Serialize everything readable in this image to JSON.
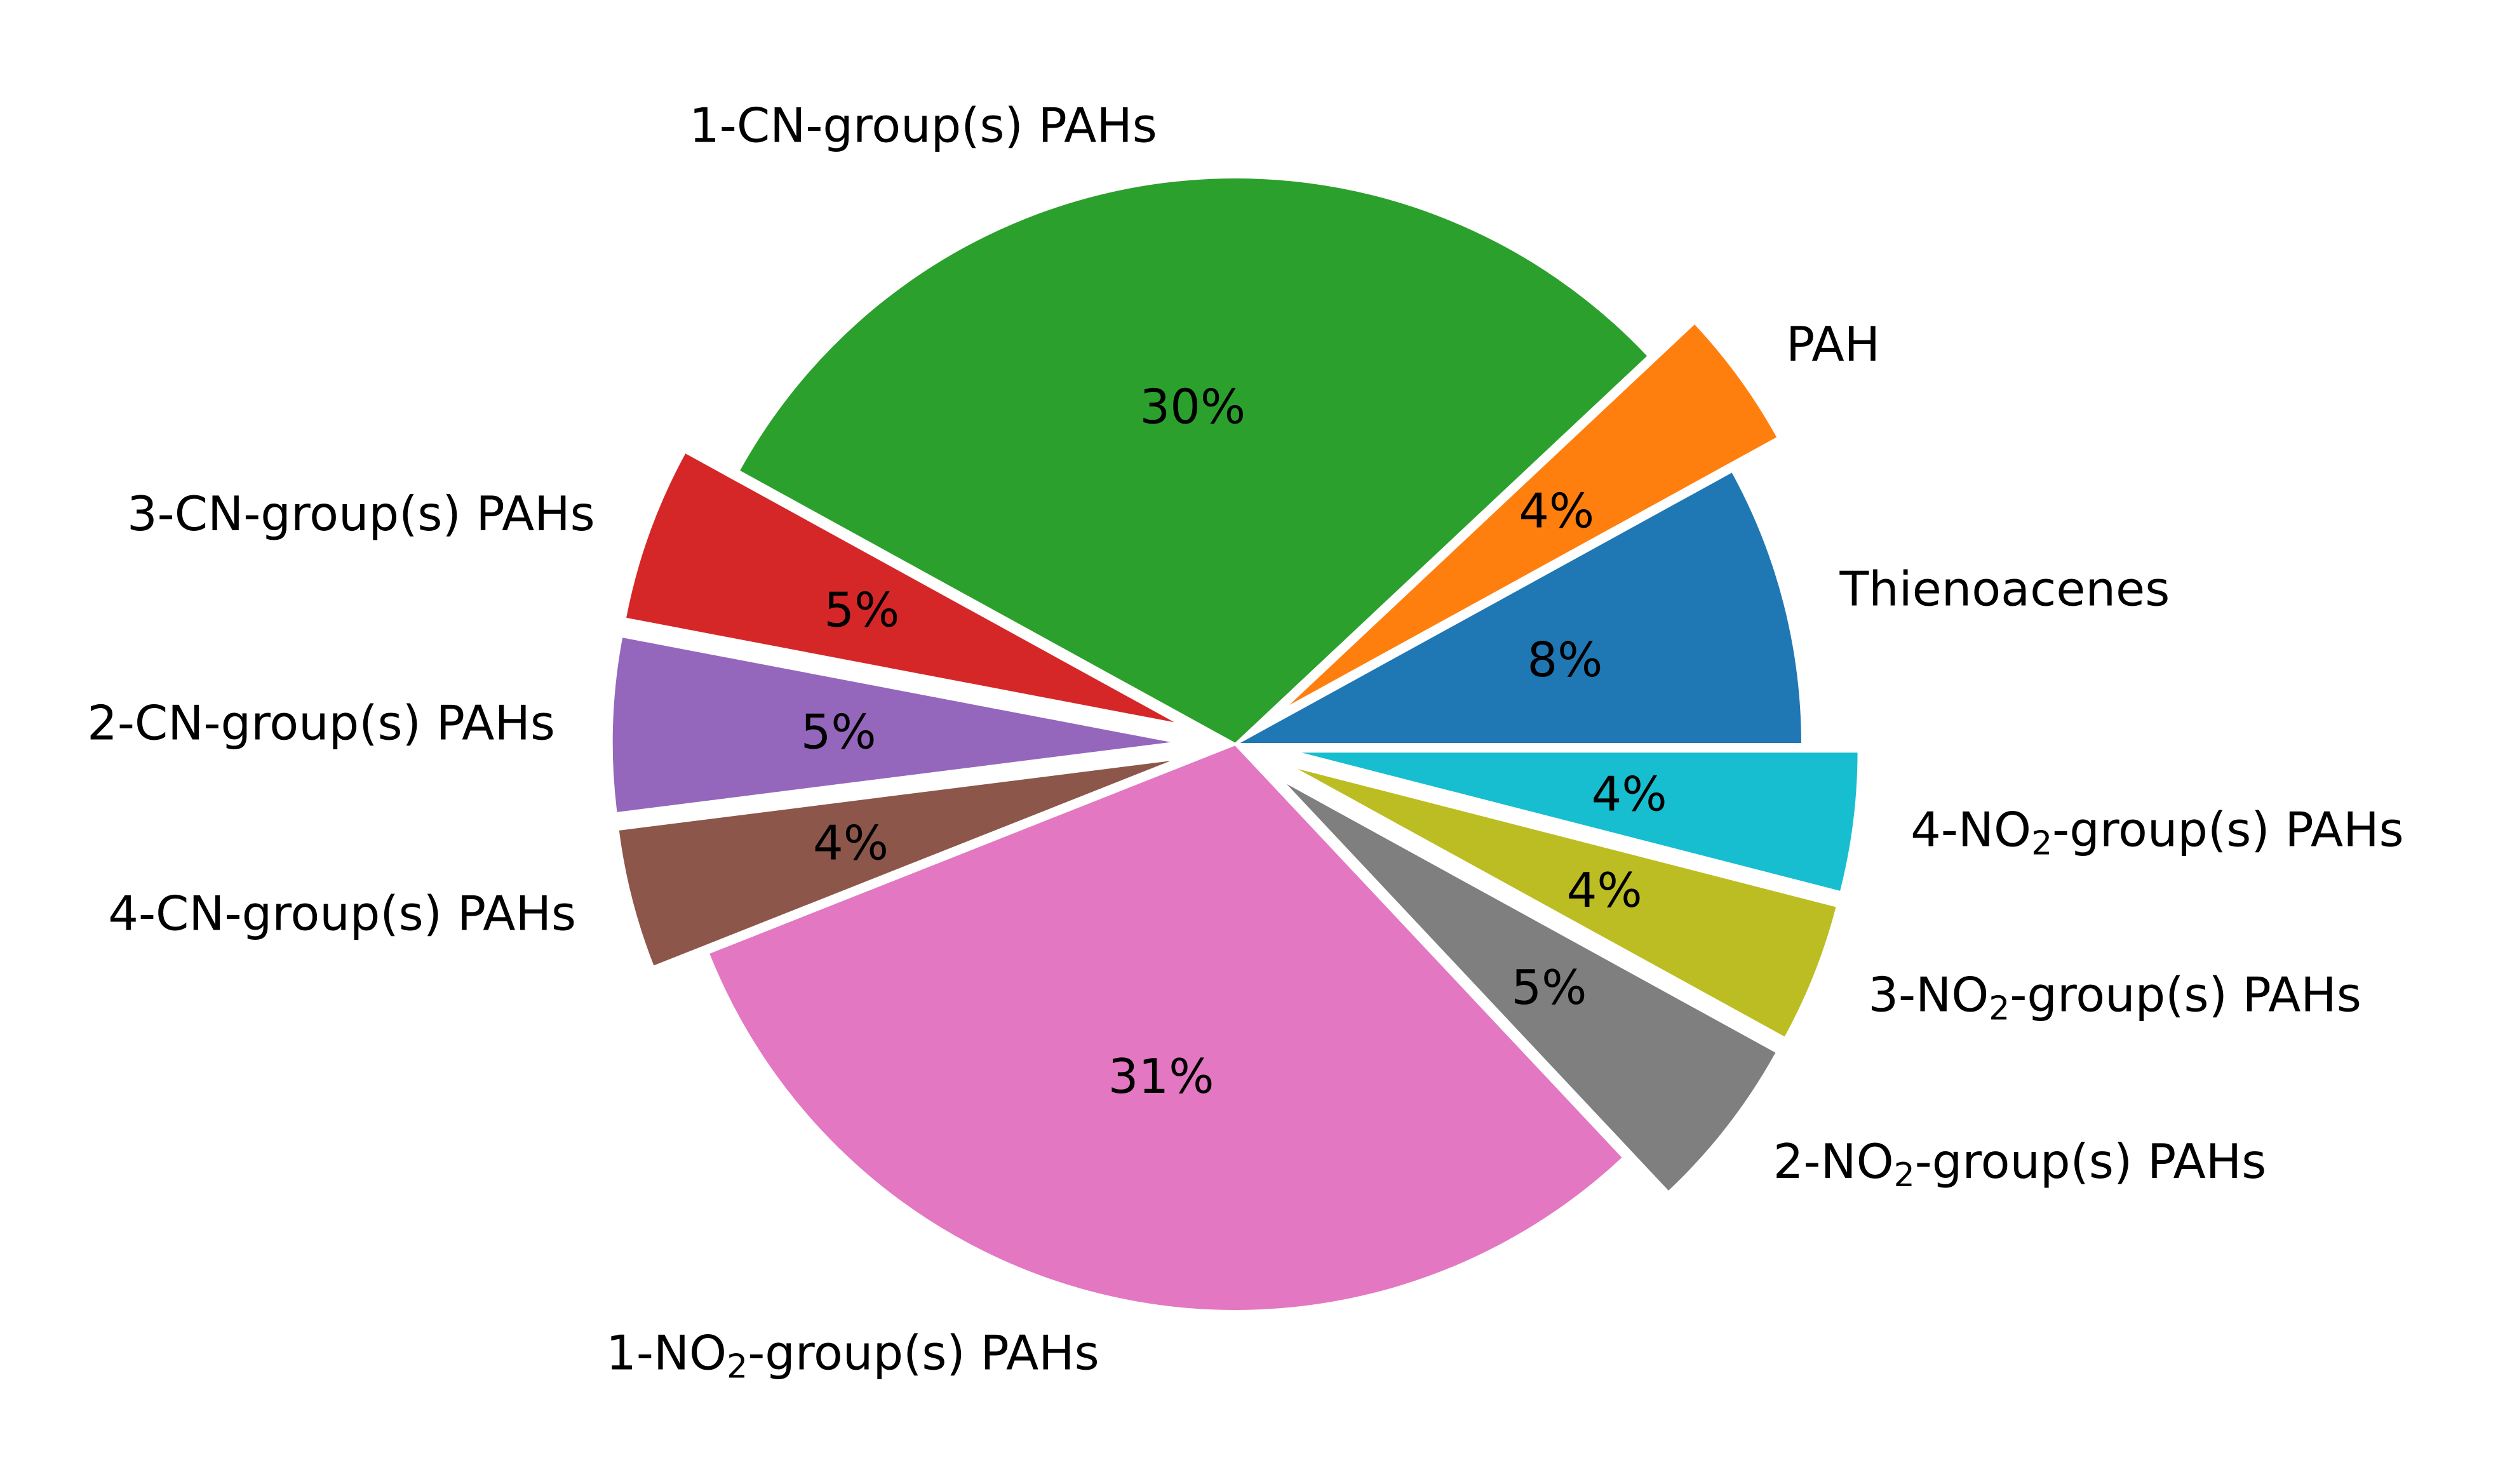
{
  "chart_data": {
    "type": "pie",
    "title": "",
    "start_angle_deg": 0,
    "direction": "counterclockwise",
    "slices": [
      {
        "label": "Thienoacenes",
        "label_parts": [
          {
            "text": "Thienoacenes"
          }
        ],
        "value": 8,
        "pct_label": "8%",
        "color": "#1f77b4",
        "exploded": false
      },
      {
        "label": "PAH",
        "label_parts": [
          {
            "text": "PAH"
          }
        ],
        "value": 4,
        "pct_label": "4%",
        "color": "#ff7f0e",
        "exploded": true
      },
      {
        "label": "1-CN-group(s) PAHs",
        "label_parts": [
          {
            "text": "1-CN-group(s) PAHs"
          }
        ],
        "value": 30,
        "pct_label": "30%",
        "color": "#2ca02c",
        "exploded": false
      },
      {
        "label": "3-CN-group(s) PAHs",
        "label_parts": [
          {
            "text": "3-CN-group(s) PAHs"
          }
        ],
        "value": 5,
        "pct_label": "5%",
        "color": "#d62728",
        "exploded": true
      },
      {
        "label": "2-CN-group(s) PAHs",
        "label_parts": [
          {
            "text": "2-CN-group(s) PAHs"
          }
        ],
        "value": 5,
        "pct_label": "5%",
        "color": "#9467bd",
        "exploded": true
      },
      {
        "label": "4-CN-group(s) PAHs",
        "label_parts": [
          {
            "text": "4-CN-group(s) PAHs"
          }
        ],
        "value": 4,
        "pct_label": "4%",
        "color": "#8c564b",
        "exploded": true
      },
      {
        "label": "1-NO2-group(s) PAHs",
        "label_parts": [
          {
            "text": "1-NO"
          },
          {
            "text": "2",
            "sub": true
          },
          {
            "text": "-group(s) PAHs"
          }
        ],
        "value": 31,
        "pct_label": "31%",
        "color": "#e377c2",
        "exploded": false
      },
      {
        "label": "2-NO2-group(s) PAHs",
        "label_parts": [
          {
            "text": "2-NO"
          },
          {
            "text": "2",
            "sub": true
          },
          {
            "text": "-group(s) PAHs"
          }
        ],
        "value": 5,
        "pct_label": "5%",
        "color": "#7f7f7f",
        "exploded": true
      },
      {
        "label": "3-NO2-group(s) PAHs",
        "label_parts": [
          {
            "text": "3-NO"
          },
          {
            "text": "2",
            "sub": true
          },
          {
            "text": "-group(s) PAHs"
          }
        ],
        "value": 4,
        "pct_label": "4%",
        "color": "#bcbd22",
        "exploded": true
      },
      {
        "label": "4-NO2-group(s) PAHs",
        "label_parts": [
          {
            "text": "4-NO"
          },
          {
            "text": "2",
            "sub": true
          },
          {
            "text": "-group(s) PAHs"
          }
        ],
        "value": 4,
        "pct_label": "4%",
        "color": "#17becf",
        "exploded": true
      }
    ]
  }
}
